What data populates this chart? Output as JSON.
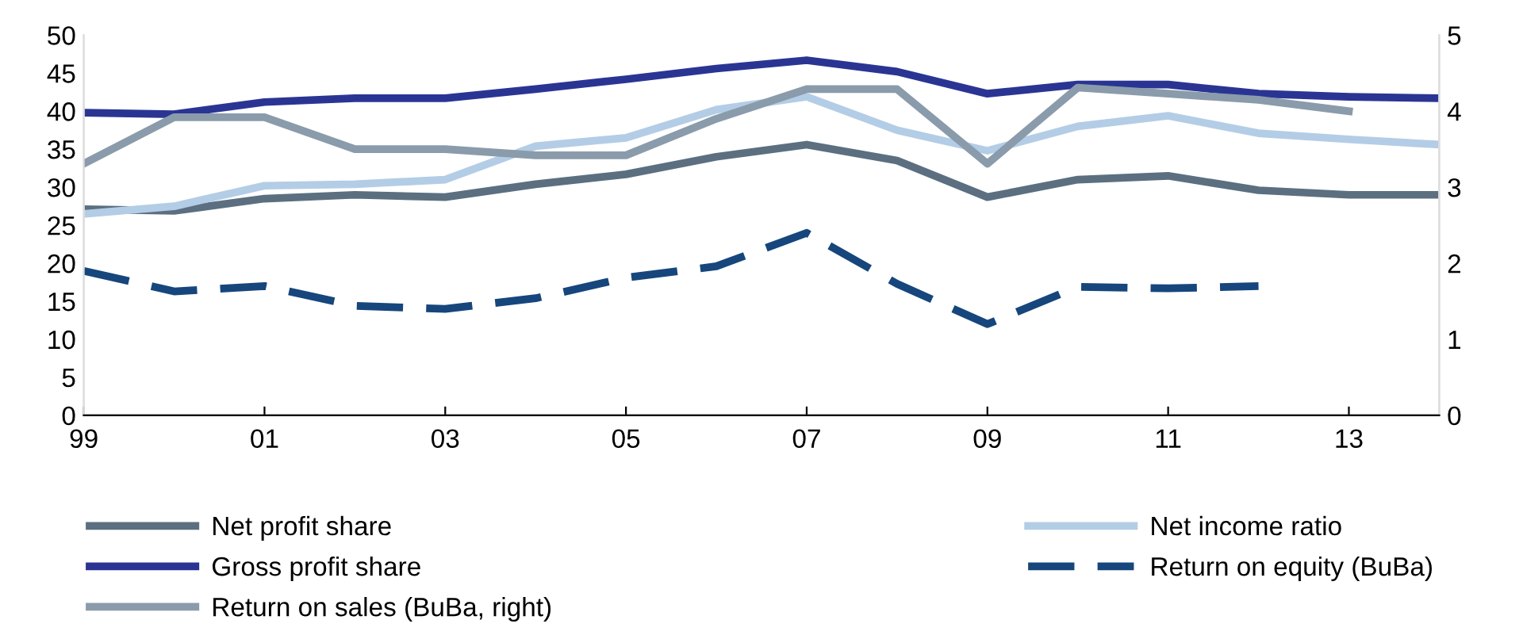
{
  "chart_data": {
    "type": "line",
    "x": [
      1999,
      2000,
      2001,
      2002,
      2003,
      2004,
      2005,
      2006,
      2007,
      2008,
      2009,
      2010,
      2011,
      2012,
      2013,
      2014
    ],
    "xlim": [
      1999,
      2014
    ],
    "xticks": [
      {
        "value": 1999,
        "label": "99"
      },
      {
        "value": 2001,
        "label": "01"
      },
      {
        "value": 2003,
        "label": "03"
      },
      {
        "value": 2005,
        "label": "05"
      },
      {
        "value": 2007,
        "label": "07"
      },
      {
        "value": 2009,
        "label": "09"
      },
      {
        "value": 2011,
        "label": "11"
      },
      {
        "value": 2013,
        "label": "13"
      }
    ],
    "ylim": [
      0,
      50
    ],
    "yticks": [
      0,
      5,
      10,
      15,
      20,
      25,
      30,
      35,
      40,
      45,
      50
    ],
    "y2lim": [
      0,
      5
    ],
    "y2ticks": [
      0,
      1,
      2,
      3,
      4,
      5
    ],
    "grid": false,
    "legend": "bottom",
    "marker": "none",
    "series": [
      {
        "name": "Net profit share",
        "color": "#5b6f80",
        "values": [
          27.1,
          26.9,
          28.5,
          29,
          28.7,
          30.4,
          31.7,
          34,
          35.6,
          33.5,
          28.7,
          31,
          31.5,
          29.6,
          29,
          29
        ]
      },
      {
        "name": "Net income ratio",
        "color": "#b4cde6",
        "values": [
          26.5,
          27.5,
          30.2,
          30.4,
          31,
          35.4,
          36.5,
          40.2,
          41.9,
          37.5,
          34.8,
          38,
          39.4,
          37.1,
          36.3,
          35.6
        ]
      },
      {
        "name": "Gross profit share",
        "color": "#2a3593",
        "values": [
          39.8,
          39.6,
          41.2,
          41.7,
          41.7,
          42.9,
          44.2,
          45.6,
          46.7,
          45.2,
          42.3,
          43.5,
          43.5,
          42.3,
          41.9,
          41.7
        ]
      },
      {
        "name": "Return on equity (BuBa)",
        "color": "#16467c",
        "axis": "y2",
        "line_style": "dashed",
        "values": [
          1.9,
          1.63,
          1.7,
          1.44,
          1.4,
          1.54,
          1.81,
          1.96,
          2.4,
          1.73,
          1.2,
          1.69,
          1.67,
          1.7,
          null,
          null
        ]
      },
      {
        "name": "Return on sales (BuBa, right)",
        "color": "#8a9bab",
        "axis": "y2",
        "values": [
          3.31,
          3.92,
          3.92,
          3.5,
          3.5,
          3.42,
          3.42,
          3.9,
          4.29,
          4.29,
          3.31,
          4.31,
          4.23,
          4.15,
          4.0,
          null
        ]
      }
    ]
  }
}
